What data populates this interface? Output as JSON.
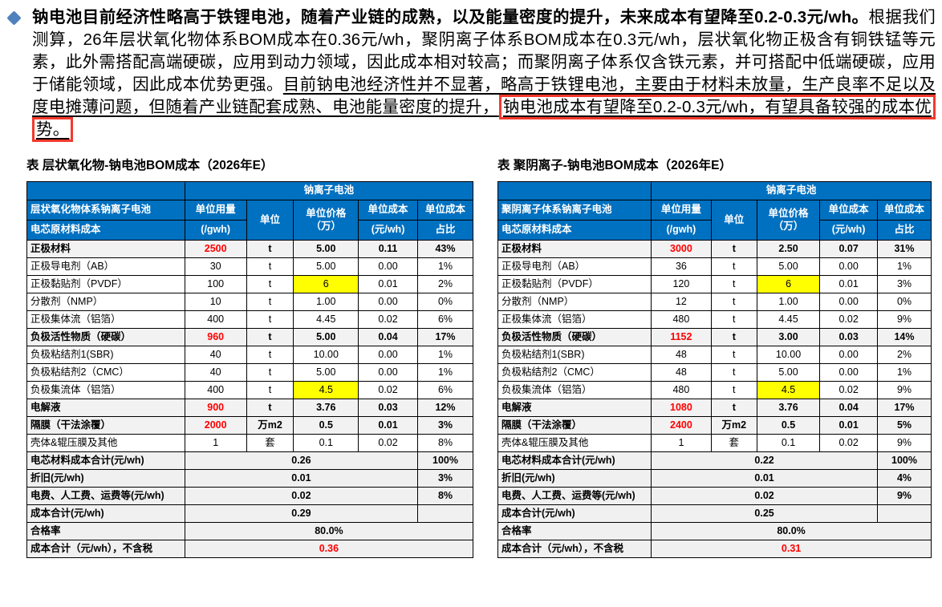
{
  "paragraph": {
    "bold": "钠电池目前经济性略高于铁锂电池，随着产业链的成熟，以及能量密度的提升，未来成本有望降至0.2-0.3元/wh。",
    "normal": "根据我们测算，26年层状氧化物体系BOM成本在0.36元/wh，聚阴离子体系BOM成本在0.3元/wh，层状氧化物正极含有铜铁锰等元素，此外需搭配高端硬碳，应用到动力领域，因此成本相对较高；而聚阴离子体系仅含铁元素，并可搭配中低端硬碳，应用于储能领域，因此成本优势更强。",
    "underlined": "目前钠电池经济性并不显著，略高于铁锂电池，主要由于材料未放量，生产良率不足以及度电摊薄问题，但随着产业链配套成熟、电池能量密度的提升，",
    "boxed": "钠电池成本有望降至0.2-0.3元/wh，有望具备较强的成本优势。"
  },
  "icons": {
    "bullet": "diamond-icon"
  },
  "colors": {
    "header_blue": "#0070C0",
    "highlight_yellow": "#FFFF00",
    "summary_lavender": "#D9DCF0",
    "row_gray": "#F2F2F2",
    "red_text": "#FF0000",
    "annotation_box_red": "#F4392D",
    "bullet_blue": "#4F81BD"
  },
  "tables": [
    {
      "title": "表 层状氧化物-钠电池BOM成本（2026年E）",
      "header": {
        "group_label": "钠离子电池",
        "label_line1": "层状氧化物体系钠离子电池",
        "label_line2": "电芯原材料成本",
        "col_qty_line1": "单位用量",
        "col_qty_line2": "(/gwh)",
        "col_unit": "单位",
        "col_price_line1": "单位价格",
        "col_price_line2": "（万）",
        "col_cost_line1": "单位成本",
        "col_cost_line2": "(元/wh)",
        "col_pct_line1": "单位成本",
        "col_pct_line2": "占比"
      },
      "rows": [
        {
          "label": "正极材料",
          "qty": "2500",
          "unit": "t",
          "price": "5.00",
          "cost": "0.11",
          "pct": "43%",
          "bold": true,
          "red_qty": true,
          "yellow_price": true
        },
        {
          "label": "正极导电剂（AB）",
          "qty": "30",
          "unit": "t",
          "price": "5.00",
          "cost": "0.00",
          "pct": "1%"
        },
        {
          "label": "正极黏贴剂（PVDF）",
          "qty": "100",
          "unit": "t",
          "price": "6",
          "cost": "0.01",
          "pct": "2%",
          "yellow_price": true
        },
        {
          "label": "分散剂（NMP）",
          "qty": "10",
          "unit": "t",
          "price": "1.00",
          "cost": "0.00",
          "pct": "0%"
        },
        {
          "label": "正极集体流（铝箔）",
          "qty": "400",
          "unit": "t",
          "price": "4.45",
          "cost": "0.02",
          "pct": "6%"
        },
        {
          "label": "负极活性物质（硬碳）",
          "qty": "960",
          "unit": "t",
          "price": "5.00",
          "cost": "0.04",
          "pct": "17%",
          "bold": true,
          "red_qty": true,
          "yellow_price": true
        },
        {
          "label": "负极粘结剂1(SBR)",
          "qty": "40",
          "unit": "t",
          "price": "10.00",
          "cost": "0.00",
          "pct": "1%"
        },
        {
          "label": "负极粘结剂2（CMC）",
          "qty": "40",
          "unit": "t",
          "price": "5.00",
          "cost": "0.00",
          "pct": "1%"
        },
        {
          "label": "负极集流体（铝箔）",
          "qty": "400",
          "unit": "t",
          "price": "4.5",
          "cost": "0.02",
          "pct": "6%",
          "yellow_price": true
        },
        {
          "label": "电解液",
          "qty": "900",
          "unit": "t",
          "price": "3.76",
          "cost": "0.03",
          "pct": "12%",
          "bold": true,
          "red_qty": true,
          "yellow_price": true
        },
        {
          "label": "隔膜（干法涂覆）",
          "qty": "2000",
          "unit": "万m2",
          "price": "0.5",
          "cost": "0.01",
          "pct": "3%",
          "bold": true,
          "red_qty": true,
          "yellow_price": true
        },
        {
          "label": "壳体&辊压膜及其他",
          "qty": "1",
          "unit": "套",
          "price": "0.1",
          "cost": "0.02",
          "pct": "8%"
        }
      ],
      "summary": [
        {
          "label": "电芯材料成本合计(元/wh)",
          "value": "0.26",
          "pct": "100%",
          "value_bg": "lavender"
        },
        {
          "label": "折旧(元/wh)",
          "value": "0.01",
          "pct": "3%",
          "value_bg": "gray"
        },
        {
          "label": "电费、人工费、运费等(元/wh)",
          "value": "0.02",
          "pct": "8%",
          "value_bg": "gray"
        },
        {
          "label": "成本合计(元/wh)",
          "value": "0.29",
          "pct": "",
          "value_bg": "yellow",
          "pct_white": true
        },
        {
          "label": "合格率",
          "value": "80.0%",
          "full": true,
          "value_bg": "gray"
        },
        {
          "label": "成本合计（元/wh），不含税",
          "value": "0.36",
          "full": true,
          "value_bg": "gray",
          "value_red": true
        }
      ]
    },
    {
      "title": "表 聚阴离子-钠电池BOM成本（2026年E）",
      "header": {
        "group_label": "钠离子电池",
        "label_line1": "聚阴离子体系钠离子电池",
        "label_line2": "电芯原材料成本",
        "col_qty_line1": "单位用量",
        "col_qty_line2": "(/gwh)",
        "col_unit": "单位",
        "col_price_line1": "单位价格",
        "col_price_line2": "（万）",
        "col_cost_line1": "单位成本",
        "col_cost_line2": "(元/wh)",
        "col_pct_line1": "单位成本",
        "col_pct_line2": "占比"
      },
      "rows": [
        {
          "label": "正极材料",
          "qty": "3000",
          "unit": "t",
          "price": "2.50",
          "cost": "0.07",
          "pct": "31%",
          "bold": true,
          "red_qty": true,
          "yellow_price": true
        },
        {
          "label": "正极导电剂（AB）",
          "qty": "36",
          "unit": "t",
          "price": "5.00",
          "cost": "0.00",
          "pct": "1%"
        },
        {
          "label": "正极黏贴剂（PVDF）",
          "qty": "120",
          "unit": "t",
          "price": "6",
          "cost": "0.01",
          "pct": "3%",
          "yellow_price": true
        },
        {
          "label": "分散剂（NMP）",
          "qty": "12",
          "unit": "t",
          "price": "1.00",
          "cost": "0.00",
          "pct": "0%"
        },
        {
          "label": "正极集体流（铝箔）",
          "qty": "480",
          "unit": "t",
          "price": "4.45",
          "cost": "0.02",
          "pct": "9%"
        },
        {
          "label": "负极活性物质（硬碳）",
          "qty": "1152",
          "unit": "t",
          "price": "3.00",
          "cost": "0.03",
          "pct": "14%",
          "bold": true,
          "red_qty": true,
          "yellow_price": true
        },
        {
          "label": "负极粘结剂1(SBR)",
          "qty": "48",
          "unit": "t",
          "price": "10.00",
          "cost": "0.00",
          "pct": "2%"
        },
        {
          "label": "负极粘结剂2（CMC）",
          "qty": "48",
          "unit": "t",
          "price": "5.00",
          "cost": "0.00",
          "pct": "1%"
        },
        {
          "label": "负极集流体（铝箔）",
          "qty": "480",
          "unit": "t",
          "price": "4.5",
          "cost": "0.02",
          "pct": "9%",
          "yellow_price": true
        },
        {
          "label": "电解液",
          "qty": "1080",
          "unit": "t",
          "price": "3.76",
          "cost": "0.04",
          "pct": "17%",
          "bold": true,
          "red_qty": true,
          "yellow_price": true
        },
        {
          "label": "隔膜（干法涂覆）",
          "qty": "2400",
          "unit": "万m2",
          "price": "0.5",
          "cost": "0.01",
          "pct": "5%",
          "bold": true,
          "red_qty": true,
          "yellow_price": true
        },
        {
          "label": "壳体&辊压膜及其他",
          "qty": "1",
          "unit": "套",
          "price": "0.1",
          "cost": "0.02",
          "pct": "9%"
        }
      ],
      "summary": [
        {
          "label": "电芯材料成本合计(元/wh)",
          "value": "0.22",
          "pct": "100%",
          "value_bg": "lavender"
        },
        {
          "label": "折旧(元/wh)",
          "value": "0.01",
          "pct": "4%",
          "value_bg": "gray"
        },
        {
          "label": "电费、人工费、运费等(元/wh)",
          "value": "0.02",
          "pct": "9%",
          "value_bg": "gray"
        },
        {
          "label": "成本合计(元/wh)",
          "value": "0.25",
          "pct": "",
          "value_bg": "yellow",
          "pct_white": true
        },
        {
          "label": "合格率",
          "value": "80.0%",
          "full": true,
          "value_bg": "gray"
        },
        {
          "label": "成本合计（元/wh），不含税",
          "value": "0.31",
          "full": true,
          "value_bg": "gray",
          "value_red": true
        }
      ]
    }
  ]
}
